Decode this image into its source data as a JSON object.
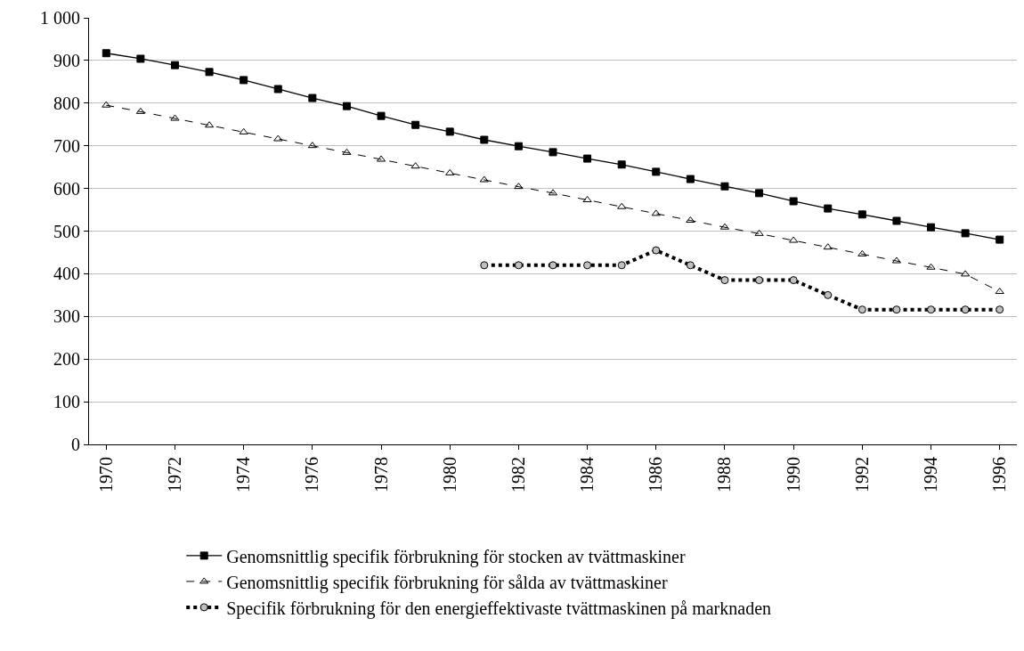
{
  "chart_data": {
    "type": "line",
    "x": [
      1970,
      1971,
      1972,
      1973,
      1974,
      1975,
      1976,
      1977,
      1978,
      1979,
      1980,
      1981,
      1982,
      1983,
      1984,
      1985,
      1986,
      1987,
      1988,
      1989,
      1990,
      1991,
      1992,
      1993,
      1994,
      1995,
      1996
    ],
    "series": [
      {
        "name": "Genomsnittlig specifik förbrukning för stocken av tvättmaskiner",
        "color": "#000000",
        "marker": "square",
        "line_style": "solid",
        "values": [
          917,
          904,
          889,
          873,
          854,
          833,
          812,
          793,
          770,
          749,
          733,
          714,
          699,
          685,
          670,
          656,
          639,
          622,
          605,
          589,
          570,
          553,
          539,
          524,
          509,
          495,
          480
        ]
      },
      {
        "name": "Genomsnittlig specifik förbrukning för sålda av tvättmaskiner",
        "color": "#000000",
        "marker": "triangle",
        "line_style": "dashed",
        "values": [
          795,
          780,
          764,
          748,
          732,
          716,
          700,
          684,
          668,
          652,
          636,
          620,
          604,
          589,
          573,
          557,
          541,
          525,
          509,
          494,
          478,
          462,
          446,
          430,
          415,
          399,
          358
        ]
      },
      {
        "name": "Specifik förbrukning för den energieffektivaste tvättmaskinen på marknaden",
        "color": "#000000",
        "marker": "circle",
        "line_style": "dotted",
        "values": [
          null,
          null,
          null,
          null,
          null,
          null,
          null,
          null,
          null,
          null,
          null,
          420,
          420,
          420,
          420,
          420,
          455,
          420,
          385,
          385,
          385,
          350,
          316,
          316,
          316,
          316,
          316
        ]
      }
    ],
    "xlim": [
      1969.5,
      1996.5
    ],
    "xticks": [
      1970,
      1972,
      1974,
      1976,
      1978,
      1980,
      1982,
      1984,
      1986,
      1988,
      1990,
      1992,
      1994,
      1996
    ],
    "ylim": [
      0,
      1000
    ],
    "yticks": [
      0,
      100,
      200,
      300,
      400,
      500,
      600,
      700,
      800,
      900,
      {
        "value": 1000,
        "label": "1 000"
      }
    ],
    "grid": "y",
    "legend": "bottom"
  }
}
